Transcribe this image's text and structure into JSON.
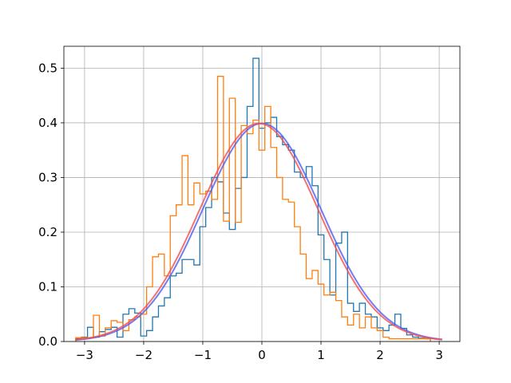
{
  "chart_data": {
    "type": "line",
    "title": "",
    "xlabel": "",
    "ylabel": "",
    "xlim": [
      -3.35,
      3.35
    ],
    "ylim": [
      0,
      0.54
    ],
    "grid": true,
    "x_ticks": [
      -3,
      -2,
      -1,
      0,
      1,
      2,
      3
    ],
    "x_tick_labels": [
      "−3",
      "−2",
      "−1",
      "0",
      "1",
      "2",
      "3"
    ],
    "y_ticks": [
      0.0,
      0.1,
      0.2,
      0.3,
      0.4,
      0.5
    ],
    "y_tick_labels": [
      "0.0",
      "0.1",
      "0.2",
      "0.3",
      "0.4",
      "0.5"
    ],
    "bin_start": -3.15,
    "bin_width": 0.1,
    "histograms": [
      {
        "color": "#1f77b4",
        "values": [
          0.005,
          0.008,
          0.026,
          0.008,
          0.018,
          0.022,
          0.026,
          0.008,
          0.05,
          0.06,
          0.052,
          0.01,
          0.02,
          0.045,
          0.065,
          0.08,
          0.12,
          0.125,
          0.15,
          0.15,
          0.14,
          0.21,
          0.245,
          0.3,
          0.292,
          0.235,
          0.205,
          0.28,
          0.3,
          0.43,
          0.518,
          0.39,
          0.4,
          0.41,
          0.375,
          0.36,
          0.35,
          0.31,
          0.3,
          0.32,
          0.285,
          0.195,
          0.15,
          0.085,
          0.18,
          0.2,
          0.07,
          0.055,
          0.07,
          0.05,
          0.045,
          0.025,
          0.02,
          0.03,
          0.05,
          0.024,
          0.012,
          0.008,
          0.006,
          0.005
        ]
      },
      {
        "color": "#ff7f0e",
        "values": [
          0.007,
          0.007,
          0.007,
          0.048,
          0.01,
          0.025,
          0.038,
          0.035,
          0.02,
          0.04,
          0.045,
          0.05,
          0.1,
          0.155,
          0.16,
          0.12,
          0.23,
          0.25,
          0.34,
          0.25,
          0.29,
          0.27,
          0.275,
          0.26,
          0.485,
          0.22,
          0.445,
          0.218,
          0.395,
          0.38,
          0.405,
          0.35,
          0.43,
          0.355,
          0.3,
          0.26,
          0.255,
          0.21,
          0.16,
          0.115,
          0.13,
          0.105,
          0.085,
          0.09,
          0.075,
          0.045,
          0.03,
          0.05,
          0.025,
          0.045,
          0.025,
          0.02,
          0.008,
          0.005,
          0.005,
          0.005,
          0.005,
          0.005,
          0.005,
          0.005
        ]
      }
    ],
    "curves": [
      {
        "color": "#4f5cf0",
        "function": "normal_pdf",
        "mean": 0.0,
        "std": 1.0,
        "x_range": [
          -3.15,
          3.05
        ]
      },
      {
        "color": "#f05050",
        "function": "normal_pdf",
        "mean": -0.05,
        "std": 1.0,
        "x_range": [
          -3.15,
          3.05
        ]
      }
    ]
  }
}
